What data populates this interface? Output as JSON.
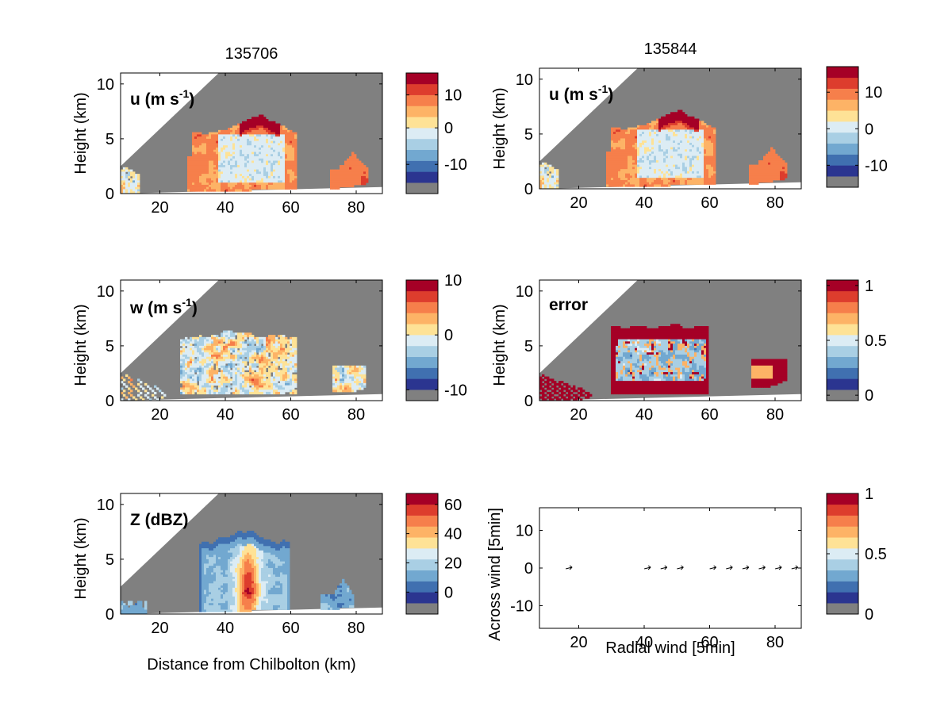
{
  "palette": [
    "#808080",
    "#2b3590",
    "#4070b0",
    "#72a8d0",
    "#a9cfe4",
    "#dcecf4",
    "#fee296",
    "#fdb366",
    "#f67f4b",
    "#dd3d2d",
    "#a50026"
  ],
  "chart_data": [
    {
      "id": "u1",
      "type": "heatmap",
      "title": "135706",
      "panel_label": "u (m s",
      "panel_label_sup": "-1",
      "panel_label_end": ")",
      "xlabel": "",
      "ylabel": "Height (km)",
      "xlim": [
        8,
        88
      ],
      "ylim": [
        0,
        11
      ],
      "xticks": [
        {
          "v": 20,
          "label": "20"
        },
        {
          "v": 40,
          "label": "40"
        },
        {
          "v": 60,
          "label": "60"
        },
        {
          "v": 80,
          "label": "80"
        }
      ],
      "yticks": [
        {
          "v": 0,
          "label": "0"
        },
        {
          "v": 5,
          "label": "5"
        },
        {
          "v": 10,
          "label": "10"
        }
      ],
      "field": "u",
      "colorbar": {
        "ticks": [
          {
            "frac": 0.242,
            "label": "-10"
          },
          {
            "frac": 0.545,
            "label": "0"
          },
          {
            "frac": 0.818,
            "label": "10"
          }
        ]
      }
    },
    {
      "id": "u2",
      "type": "heatmap",
      "title": "135844",
      "panel_label": "u (m s",
      "panel_label_sup": "-1",
      "panel_label_end": ")",
      "xlabel": "",
      "ylabel": "Height (km)",
      "xlim": [
        8,
        88
      ],
      "ylim": [
        0,
        11
      ],
      "xticks": [
        {
          "v": 20,
          "label": "20"
        },
        {
          "v": 40,
          "label": "40"
        },
        {
          "v": 60,
          "label": "60"
        },
        {
          "v": 80,
          "label": "80"
        }
      ],
      "yticks": [
        {
          "v": 0,
          "label": "0"
        },
        {
          "v": 5,
          "label": "5"
        },
        {
          "v": 10,
          "label": "10"
        }
      ],
      "field": "u",
      "colorbar": {
        "ticks": [
          {
            "frac": 0.182,
            "label": "-10"
          },
          {
            "frac": 0.485,
            "label": "0"
          },
          {
            "frac": 0.788,
            "label": "10"
          }
        ]
      }
    },
    {
      "id": "w",
      "type": "heatmap",
      "title": "",
      "panel_label": "w (m s",
      "panel_label_sup": "-1",
      "panel_label_end": ")",
      "xlabel": "",
      "ylabel": "Height (km)",
      "xlim": [
        8,
        88
      ],
      "ylim": [
        0,
        11
      ],
      "xticks": [
        {
          "v": 20,
          "label": "20"
        },
        {
          "v": 40,
          "label": "40"
        },
        {
          "v": 60,
          "label": "60"
        },
        {
          "v": 80,
          "label": "80"
        }
      ],
      "yticks": [
        {
          "v": 0,
          "label": "0"
        },
        {
          "v": 5,
          "label": "5"
        },
        {
          "v": 10,
          "label": "10"
        }
      ],
      "field": "w",
      "colorbar": {
        "ticks": [
          {
            "frac": 0.09,
            "label": "-10"
          },
          {
            "frac": 0.545,
            "label": "0"
          },
          {
            "frac": 1.0,
            "label": "10"
          }
        ]
      }
    },
    {
      "id": "err",
      "type": "heatmap",
      "title": "",
      "panel_label": "error",
      "panel_label_sup": "",
      "panel_label_end": "",
      "xlabel": "",
      "ylabel": "Height (km)",
      "xlim": [
        8,
        88
      ],
      "ylim": [
        0,
        11
      ],
      "xticks": [
        {
          "v": 20,
          "label": "20"
        },
        {
          "v": 40,
          "label": "40"
        },
        {
          "v": 60,
          "label": "60"
        },
        {
          "v": 80,
          "label": "80"
        }
      ],
      "yticks": [
        {
          "v": 0,
          "label": "0"
        },
        {
          "v": 5,
          "label": "5"
        },
        {
          "v": 10,
          "label": "10"
        }
      ],
      "field": "error",
      "colorbar": {
        "ticks": [
          {
            "frac": 0.045,
            "label": "0"
          },
          {
            "frac": 0.5,
            "label": "0.5"
          },
          {
            "frac": 0.955,
            "label": "1"
          }
        ]
      }
    },
    {
      "id": "z",
      "type": "heatmap",
      "title": "",
      "panel_label": "Z (dBZ)",
      "panel_label_sup": "",
      "panel_label_end": "",
      "xlabel": "Distance from Chilbolton (km)",
      "ylabel": "Height (km)",
      "xlim": [
        8,
        88
      ],
      "ylim": [
        0,
        11
      ],
      "xticks": [
        {
          "v": 20,
          "label": "20"
        },
        {
          "v": 40,
          "label": "40"
        },
        {
          "v": 60,
          "label": "60"
        },
        {
          "v": 80,
          "label": "80"
        }
      ],
      "yticks": [
        {
          "v": 0,
          "label": "0"
        },
        {
          "v": 5,
          "label": "5"
        },
        {
          "v": 10,
          "label": "10"
        }
      ],
      "field": "Z",
      "colorbar": {
        "ticks": [
          {
            "frac": 0.182,
            "label": "0"
          },
          {
            "frac": 0.424,
            "label": "20"
          },
          {
            "frac": 0.667,
            "label": "40"
          },
          {
            "frac": 0.909,
            "label": "60"
          }
        ]
      }
    },
    {
      "id": "vec",
      "type": "scatter",
      "title": "",
      "panel_label": "",
      "panel_label_sup": "",
      "panel_label_end": "",
      "xlabel": "Radial wind [5min]",
      "ylabel": "Across wind [5min]",
      "xlim": [
        8,
        88
      ],
      "ylim": [
        -16,
        16
      ],
      "xticks": [
        {
          "v": 20,
          "label": "20"
        },
        {
          "v": 40,
          "label": "40"
        },
        {
          "v": 60,
          "label": "60"
        },
        {
          "v": 80,
          "label": "80"
        }
      ],
      "yticks": [
        {
          "v": -10,
          "label": "-10"
        },
        {
          "v": 0,
          "label": "0"
        },
        {
          "v": 10,
          "label": "10"
        }
      ],
      "vectors": {
        "x": [
          17,
          41,
          46,
          51,
          61,
          66,
          71,
          76,
          81,
          86
        ],
        "y": [
          0,
          0,
          0,
          0,
          0,
          0,
          0,
          0,
          0,
          0
        ]
      },
      "colorbar": {
        "ticks": [
          {
            "frac": 0.0,
            "label": "0"
          },
          {
            "frac": 0.5,
            "label": "0.5"
          },
          {
            "frac": 1.0,
            "label": "1"
          }
        ]
      }
    }
  ]
}
